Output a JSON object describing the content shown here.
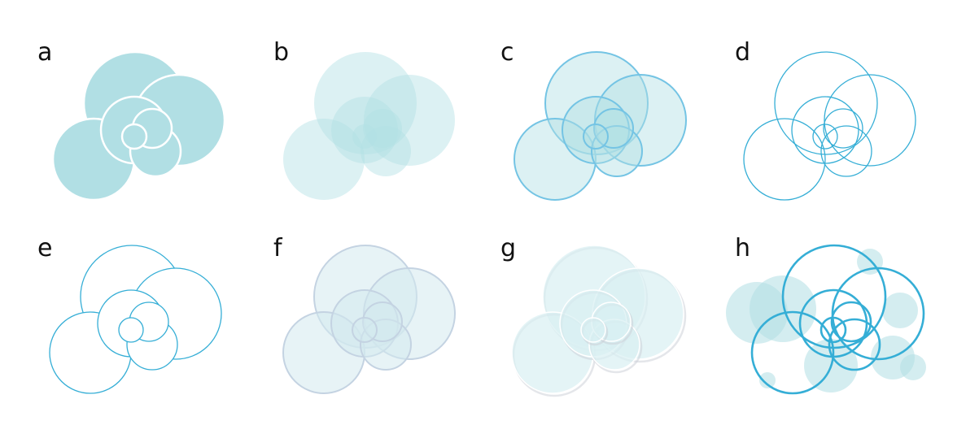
{
  "panels": [
    {
      "id": "panel-a",
      "label": "a",
      "style": "solid-white-outline"
    },
    {
      "id": "panel-b",
      "label": "b",
      "style": "translucent-no-stroke"
    },
    {
      "id": "panel-c",
      "label": "c",
      "style": "translucent-blue-stroke"
    },
    {
      "id": "panel-d",
      "label": "d",
      "style": "outline-only-overlap"
    },
    {
      "id": "panel-e",
      "label": "e",
      "style": "outline-only-occluded"
    },
    {
      "id": "panel-f",
      "label": "f",
      "style": "translucent-grey-stroke"
    },
    {
      "id": "panel-g",
      "label": "g",
      "style": "translucent-shadowed"
    },
    {
      "id": "panel-h",
      "label": "h",
      "style": "outline-with-background-circles"
    }
  ],
  "colors": {
    "solid_fill": "#b1dfe4",
    "light_fill": "#d8eff2",
    "bluegrey_fill": "#d3e9ef",
    "blue_stroke": "#74c4e4",
    "line_stroke": "#35aed6",
    "grey_stroke": "#c4d3e2",
    "shadow": "#c9ced6",
    "label": "#111111"
  }
}
